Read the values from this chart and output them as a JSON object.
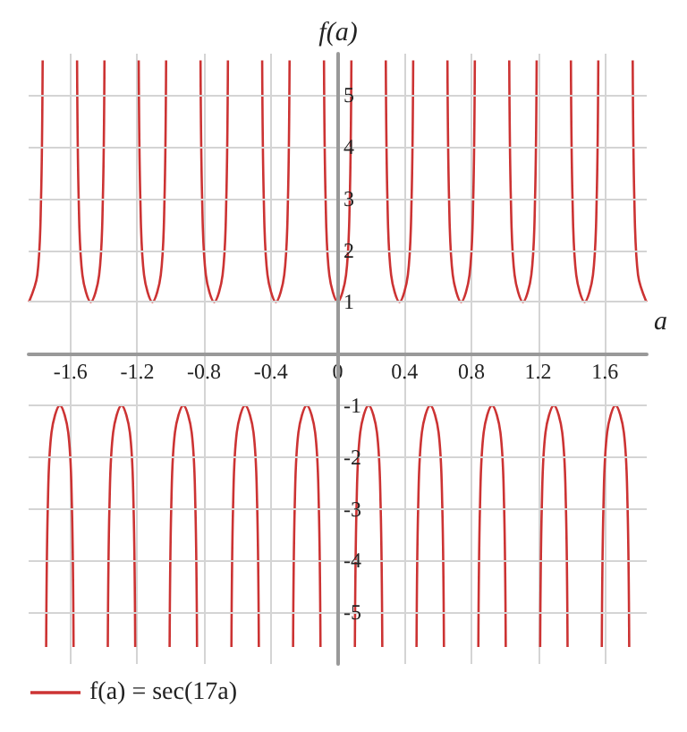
{
  "chart_data": {
    "type": "line",
    "xlabel": "a",
    "ylabel": "f(a)",
    "xlim": [
      -1.85,
      1.85
    ],
    "xticks": [
      -1.6,
      -1.2,
      -0.8,
      -0.4,
      0,
      0.4,
      0.8,
      1.2,
      1.6
    ],
    "ylim": [
      -6,
      5.8
    ],
    "yticks": [
      -5,
      -4,
      -3,
      -2,
      -1,
      1,
      2,
      3,
      4,
      5
    ],
    "grid": true,
    "legend": "bottom left",
    "marker": "none",
    "line_style": "solid",
    "series": [
      {
        "name": "f(a) = sec(17a)",
        "color": "#cc3333",
        "x": [
          -1.848,
          -1.798,
          -1.776,
          -1.766,
          -1.756,
          -1.745,
          -1.735,
          -1.713,
          -1.663,
          -1.613,
          -1.591,
          -1.581,
          -1.571,
          -1.56,
          -1.55,
          -1.528,
          -1.478,
          -1.428,
          -1.406,
          -1.396,
          -1.386,
          -1.376,
          -1.366,
          -1.344,
          -1.294,
          -1.244,
          -1.222,
          -1.212,
          -1.202,
          -1.191,
          -1.181,
          -1.159,
          -1.109,
          -1.059,
          -1.037,
          -1.027,
          -1.017,
          -1.006,
          -0.996,
          -0.974,
          -0.924,
          -0.874,
          -0.852,
          -0.842,
          -0.832,
          -0.821,
          -0.811,
          -0.789,
          -0.739,
          -0.689,
          -0.667,
          -0.657,
          -0.647,
          -0.636,
          -0.626,
          -0.604,
          -0.554,
          -0.504,
          -0.482,
          -0.472,
          -0.462,
          -0.452,
          -0.442,
          -0.42,
          -0.37,
          -0.32,
          -0.298,
          -0.288,
          -0.278,
          -0.267,
          -0.257,
          -0.235,
          -0.185,
          -0.135,
          -0.113,
          -0.103,
          -0.093,
          -0.082,
          -0.072,
          -0.05,
          0,
          0.05,
          0.072,
          0.082,
          0.093,
          0.103,
          0.113,
          0.135,
          0.185,
          0.235,
          0.257,
          0.267,
          0.278,
          0.288,
          0.298,
          0.32,
          0.37,
          0.42,
          0.442,
          0.452,
          0.462,
          0.472,
          0.482,
          0.504,
          0.554,
          0.604,
          0.626,
          0.636,
          0.647,
          0.657,
          0.667,
          0.689,
          0.739,
          0.789,
          0.811,
          0.821,
          0.832,
          0.842,
          0.852,
          0.874,
          0.924,
          0.974,
          0.996,
          1.006,
          1.017,
          1.027,
          1.037,
          1.059,
          1.109,
          1.159,
          1.181,
          1.191,
          1.202,
          1.212,
          1.222,
          1.244,
          1.294,
          1.344,
          1.366,
          1.376,
          1.386,
          1.396,
          1.406,
          1.428,
          1.478,
          1.528,
          1.55,
          1.56,
          1.571,
          1.581,
          1.591,
          1.613,
          1.663,
          1.713,
          1.735,
          1.745,
          1.756,
          1.766,
          1.776,
          1.798,
          1.848
        ],
        "values": [
          1,
          1.52,
          2.94,
          5.67,
          null,
          -5.67,
          -2.94,
          -1.52,
          -1,
          -1.52,
          -2.94,
          -5.67,
          null,
          5.67,
          2.94,
          1.52,
          1,
          1.52,
          2.94,
          5.67,
          null,
          -5.67,
          -2.94,
          -1.52,
          -1,
          -1.52,
          -2.94,
          -5.67,
          null,
          5.67,
          2.94,
          1.52,
          1,
          1.52,
          2.94,
          5.67,
          null,
          -5.67,
          -2.94,
          -1.52,
          -1,
          -1.52,
          -2.94,
          -5.67,
          null,
          5.67,
          2.94,
          1.52,
          1,
          1.52,
          2.94,
          5.67,
          null,
          -5.67,
          -2.94,
          -1.52,
          -1,
          -1.52,
          -2.94,
          -5.67,
          null,
          5.67,
          2.94,
          1.52,
          1,
          1.52,
          2.94,
          5.67,
          null,
          -5.67,
          -2.94,
          -1.52,
          -1,
          -1.52,
          -2.94,
          -5.67,
          null,
          5.67,
          2.94,
          1.52,
          1,
          1.52,
          2.94,
          5.67,
          null,
          -5.67,
          -2.94,
          -1.52,
          -1,
          -1.52,
          -2.94,
          -5.67,
          null,
          5.67,
          2.94,
          1.52,
          1,
          1.52,
          2.94,
          5.67,
          null,
          -5.67,
          -2.94,
          -1.52,
          -1,
          -1.52,
          -2.94,
          -5.67,
          null,
          5.67,
          2.94,
          1.52,
          1,
          1.52,
          2.94,
          5.67,
          null,
          -5.67,
          -2.94,
          -1.52,
          -1,
          -1.52,
          -2.94,
          -5.67,
          null,
          5.67,
          2.94,
          1.52,
          1,
          1.52,
          2.94,
          5.67,
          null,
          -5.67,
          -2.94,
          -1.52,
          -1,
          -1.52,
          -2.94,
          -5.67,
          null,
          5.67,
          2.94,
          1.52,
          1,
          1.52,
          2.94,
          5.67,
          null,
          -5.67,
          -2.94,
          -1.52,
          -1,
          -1.52,
          -2.94,
          -5.67,
          null,
          5.67,
          2.94,
          1.52,
          1
        ]
      }
    ]
  }
}
